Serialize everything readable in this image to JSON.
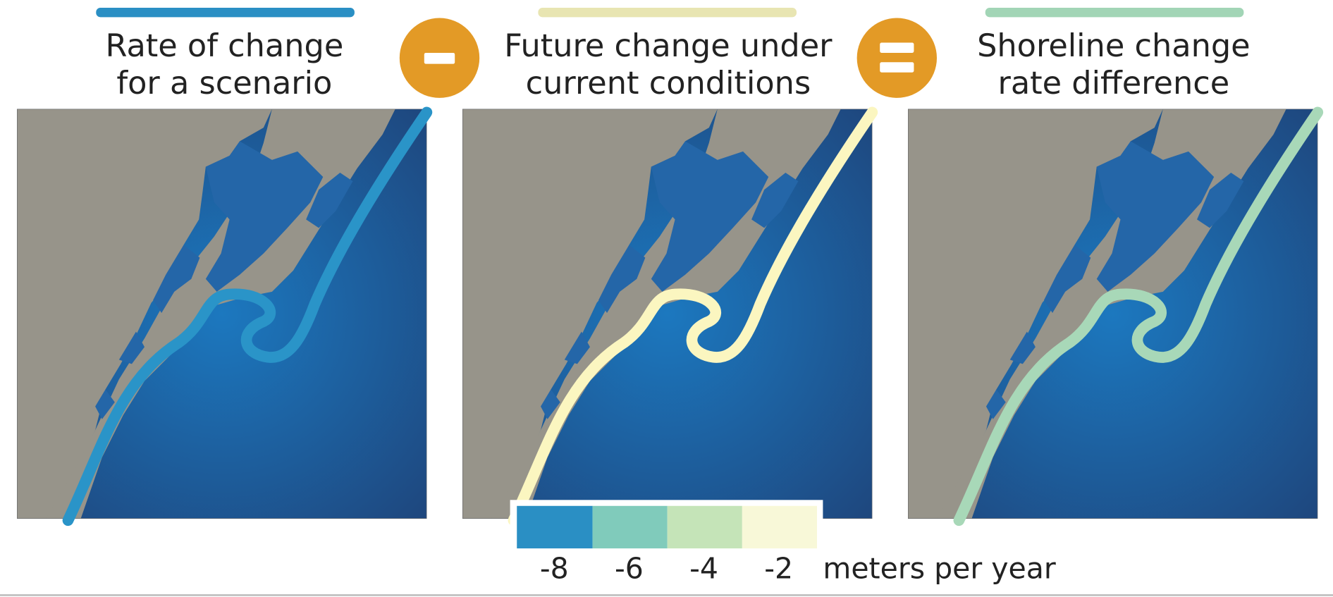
{
  "panels": [
    {
      "title": [
        "Rate of change",
        "for a scenario"
      ]
    },
    {
      "title": [
        "Future change under",
        "current conditions"
      ]
    },
    {
      "title": [
        "Shoreline change",
        "rate difference"
      ]
    }
  ],
  "legend": {
    "ticks": [
      -8,
      -6,
      -4,
      -2
    ],
    "unit": "meters per year"
  }
}
